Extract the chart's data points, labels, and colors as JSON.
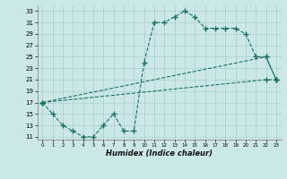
{
  "xlabel": "Humidex (Indice chaleur)",
  "bg_color": "#cce8e6",
  "grid_color": "#aacfcc",
  "line_color": "#1a7060",
  "xlim": [
    -0.5,
    23.5
  ],
  "ylim": [
    10.5,
    34
  ],
  "yticks": [
    11,
    13,
    15,
    17,
    19,
    21,
    23,
    25,
    27,
    29,
    31,
    33
  ],
  "xticks": [
    0,
    1,
    2,
    3,
    4,
    5,
    6,
    7,
    8,
    9,
    10,
    11,
    12,
    13,
    14,
    15,
    16,
    17,
    18,
    19,
    20,
    21,
    22,
    23
  ],
  "line1_x": [
    0,
    1,
    2,
    3,
    4,
    5,
    6,
    7,
    8,
    9,
    10,
    11,
    12,
    13,
    14,
    15,
    16,
    17,
    18,
    19,
    20,
    21,
    22,
    23
  ],
  "line1_y": [
    17,
    15,
    13,
    12,
    11,
    11,
    13,
    15,
    12,
    12,
    24,
    31,
    31,
    32,
    33,
    32,
    30,
    30,
    30,
    30,
    29,
    25,
    25,
    21
  ],
  "line2_x": [
    0,
    22,
    23
  ],
  "line2_y": [
    17,
    25,
    21
  ],
  "line3_x": [
    0,
    22,
    23
  ],
  "line3_y": [
    17,
    21,
    21
  ]
}
